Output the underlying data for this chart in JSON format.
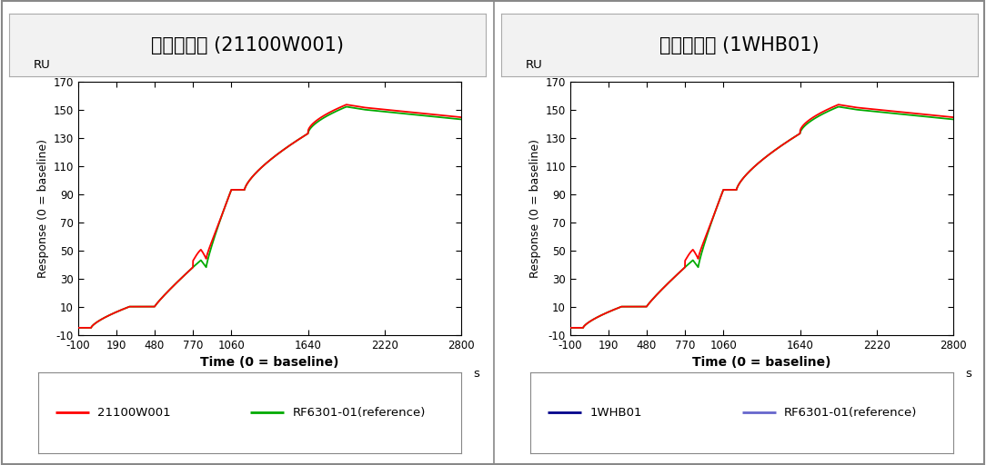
{
  "left_title": "원료의약품 (21100W001)",
  "right_title": "완제의약품 (1WHB01)",
  "ylabel": "Response (0 = baseline)",
  "xlabel": "Time (0 = baseline)",
  "y_unit": "RU",
  "x_unit": "s",
  "xlim": [
    -100,
    2800
  ],
  "ylim": [
    -10,
    170
  ],
  "xticks": [
    -100,
    190,
    480,
    770,
    1060,
    1640,
    2220,
    2800
  ],
  "yticks": [
    -10,
    10,
    30,
    50,
    70,
    90,
    110,
    130,
    150,
    170
  ],
  "left_legend1_label": "21100W001",
  "left_legend2_label": "RF6301-01(reference)",
  "right_legend1_label": "1WHB01",
  "right_legend2_label": "RF6301-01(reference)",
  "color_red": "#FF0000",
  "color_green": "#00AA00",
  "color_darkblue": "#00008B",
  "color_refblue": "#6666CC",
  "bg_color": "#FFFFFF",
  "title_bg": "#F0F0F0",
  "border_color": "#888888"
}
